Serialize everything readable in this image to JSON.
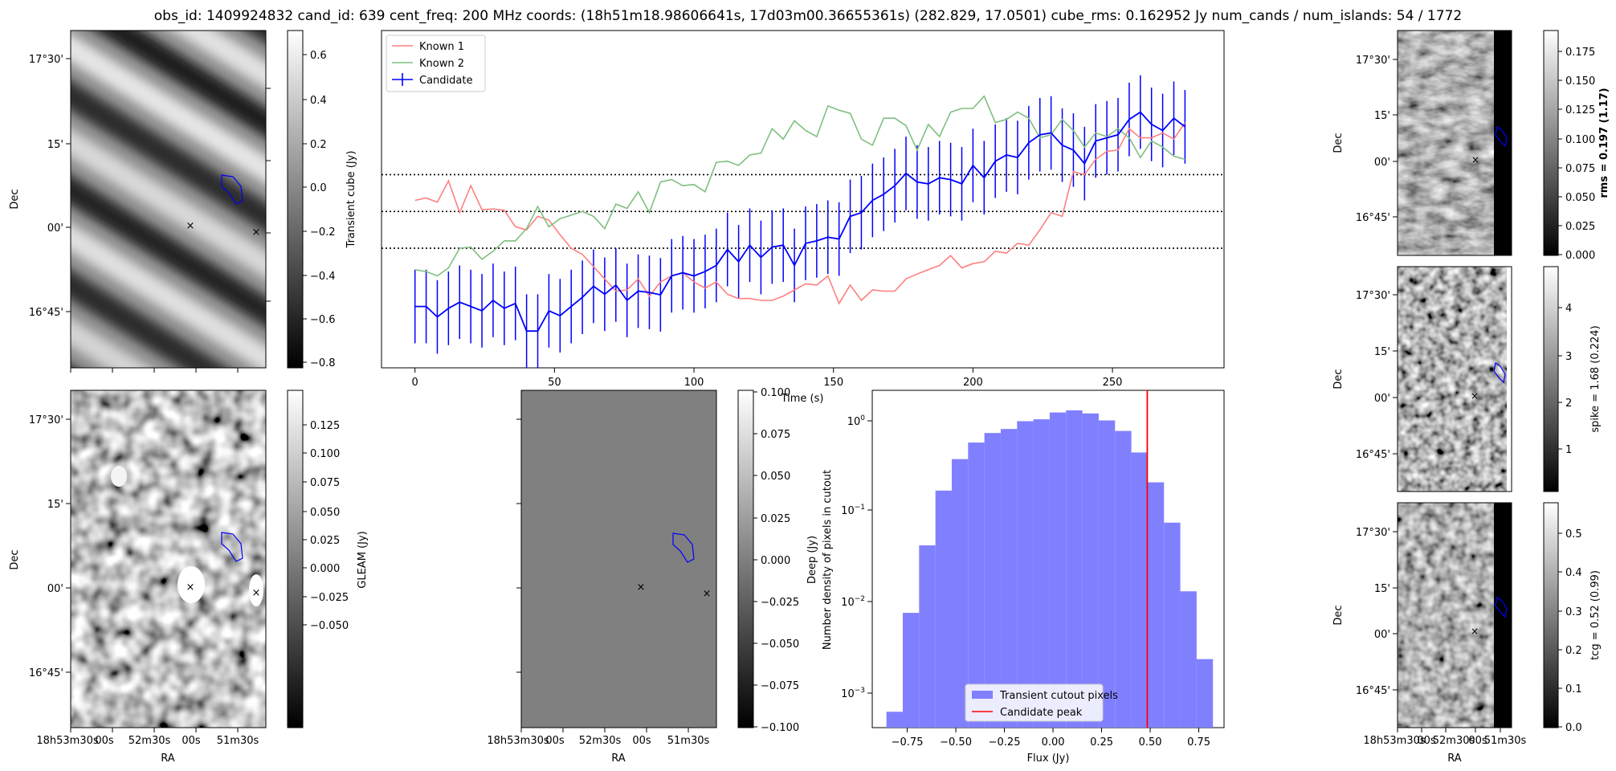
{
  "title": "obs_id: 1409924832 cand_id: 639 cent_freq: 200 MHz coords: (18h51m18.98606641s, 17d03m00.36655361s) (282.829, 17.0501) cube_rms: 0.162952 Jy num_cands / num_islands: 54 / 1772",
  "colors": {
    "known1": "#ff7f7f",
    "known2": "#7fbf7f",
    "candidate": "#0000ff",
    "hist": "#8080ff",
    "peak": "#ff0000",
    "marker_red": "#ff0000",
    "marker_green": "#008000"
  },
  "sky_axes": {
    "dec_ticks": [
      "17°30'",
      "15'",
      "00'",
      "16°45'"
    ],
    "ra_ticks": [
      "18h53m30s",
      "00s",
      "52m30s",
      "00s",
      "51m30s"
    ],
    "xlabel": "RA",
    "ylabel": "Dec"
  },
  "colorbars": {
    "transient": {
      "label": "Transient cube (Jy)",
      "ticks": [
        "0.6",
        "0.4",
        "0.2",
        "0.0",
        "−0.2",
        "−0.4",
        "−0.6",
        "−0.8"
      ]
    },
    "gleam": {
      "label": "GLEAM (Jy)",
      "ticks": [
        "0.125",
        "0.100",
        "0.075",
        "0.050",
        "0.025",
        "0.000",
        "−0.025",
        "−0.050"
      ]
    },
    "deep": {
      "label": "Deep (Jy)",
      "ticks": [
        "0.100",
        "0.075",
        "0.050",
        "0.025",
        "0.000",
        "−0.025",
        "−0.050",
        "−0.075",
        "−0.100"
      ]
    },
    "rms": {
      "label": "rms = 0.197 (1.17)",
      "ticks": [
        "0.175",
        "0.150",
        "0.125",
        "0.100",
        "0.075",
        "0.050",
        "0.025",
        "0.000"
      ]
    },
    "spike": {
      "label": "spike = 1.68 (0.224)",
      "ticks": [
        "4",
        "3",
        "2",
        "1"
      ]
    },
    "tcg": {
      "label": "tcg = 0.52 (0.99)",
      "ticks": [
        "0.5",
        "0.4",
        "0.3",
        "0.2",
        "0.1",
        "0.0"
      ]
    }
  },
  "chart_data": [
    {
      "type": "line",
      "xlabel": "Time (s)",
      "ylabel": "",
      "xlim": [
        -12,
        290
      ],
      "ylim": [
        -2.55,
        2.95
      ],
      "x_ticks": [
        0,
        50,
        100,
        150,
        200,
        250
      ],
      "hlines": [
        0.6,
        0.0,
        -0.6
      ],
      "legend": "top-left",
      "x": [
        0,
        4,
        8,
        12,
        16,
        20,
        24,
        28,
        32,
        36,
        40,
        44,
        48,
        52,
        56,
        60,
        64,
        68,
        72,
        76,
        80,
        84,
        88,
        92,
        96,
        100,
        104,
        108,
        112,
        116,
        120,
        124,
        128,
        132,
        136,
        140,
        144,
        148,
        152,
        156,
        160,
        164,
        168,
        172,
        176,
        180,
        184,
        188,
        192,
        196,
        200,
        204,
        208,
        212,
        216,
        220,
        224,
        228,
        232,
        236,
        240,
        244,
        248,
        252,
        256,
        260,
        264,
        268,
        272,
        276
      ],
      "series": [
        {
          "name": "Known 1",
          "values": [
            0.18,
            0.22,
            0.15,
            0.5,
            -0.02,
            0.42,
            0.03,
            0.04,
            0.02,
            -0.25,
            -0.3,
            -0.08,
            -0.14,
            -0.38,
            -0.6,
            -0.7,
            -0.9,
            -1.1,
            -1.3,
            -1.28,
            -1.1,
            -1.38,
            -1.15,
            -1.05,
            -1.0,
            -1.15,
            -1.25,
            -1.15,
            -1.35,
            -1.42,
            -1.42,
            -1.45,
            -1.45,
            -1.38,
            -1.28,
            -1.18,
            -1.2,
            -1.05,
            -1.5,
            -1.2,
            -1.45,
            -1.28,
            -1.3,
            -1.3,
            -1.1,
            -1.02,
            -0.95,
            -0.88,
            -0.72,
            -0.92,
            -0.85,
            -0.82,
            -0.65,
            -0.68,
            -0.52,
            -0.55,
            -0.3,
            -0.02,
            -0.08,
            0.65,
            0.6,
            0.85,
            0.98,
            1.0,
            1.35,
            1.2,
            1.2,
            1.28,
            1.18,
            1.45
          ]
        },
        {
          "name": "Known 2",
          "values": [
            -0.95,
            -0.98,
            -1.05,
            -0.92,
            -0.6,
            -0.58,
            -0.78,
            -0.65,
            -0.48,
            -0.48,
            -0.28,
            0.08,
            -0.25,
            -0.12,
            -0.06,
            0.0,
            -0.08,
            -0.28,
            0.12,
            0.05,
            0.32,
            -0.02,
            0.48,
            0.52,
            0.42,
            0.44,
            0.32,
            0.8,
            0.82,
            0.75,
            0.92,
            0.95,
            1.35,
            1.18,
            1.48,
            1.32,
            1.22,
            1.72,
            1.65,
            1.6,
            1.18,
            1.08,
            1.52,
            1.52,
            1.4,
            1.0,
            1.42,
            1.22,
            1.62,
            1.68,
            1.68,
            1.88,
            1.45,
            1.5,
            1.62,
            1.52,
            1.2,
            1.25,
            1.5,
            1.32,
            1.05,
            1.28,
            1.22,
            1.35,
            1.2,
            0.88,
            1.15,
            1.05,
            0.9,
            0.85
          ]
        },
        {
          "name": "Candidate",
          "values": [
            -1.55,
            -1.55,
            -1.72,
            -1.58,
            -1.48,
            -1.55,
            -1.62,
            -1.45,
            -1.58,
            -1.5,
            -1.95,
            -1.95,
            -1.62,
            -1.7,
            -1.55,
            -1.4,
            -1.22,
            -1.35,
            -1.2,
            -1.45,
            -1.3,
            -1.32,
            -1.36,
            -1.05,
            -1.0,
            -1.05,
            -0.98,
            -0.88,
            -0.62,
            -0.82,
            -0.55,
            -0.75,
            -0.58,
            -0.55,
            -0.88,
            -0.52,
            -0.48,
            -0.42,
            -0.45,
            -0.08,
            -0.02,
            0.18,
            0.28,
            0.42,
            0.62,
            0.48,
            0.45,
            0.55,
            0.52,
            0.45,
            0.75,
            0.55,
            0.82,
            0.92,
            0.88,
            1.12,
            1.25,
            1.28,
            1.08,
            1.0,
            0.78,
            1.15,
            1.2,
            1.25,
            1.5,
            1.62,
            1.42,
            1.32,
            1.52,
            1.38
          ]
        }
      ],
      "candidate_error": 0.6
    },
    {
      "type": "bar",
      "xlabel": "Flux (Jy)",
      "ylabel": "Number density of pixels in cutout",
      "yscale": "log",
      "ylim": [
        0.0004,
        2.2
      ],
      "xlim": [
        -0.93,
        0.88
      ],
      "x_ticks": [
        "−0.75",
        "−0.50",
        "−0.25",
        "0.00",
        "0.25",
        "0.50",
        "0.75"
      ],
      "y_ticks": [
        "10^0",
        "10^-1",
        "10^-2",
        "10^-3"
      ],
      "bin_edges": [
        -0.857,
        -0.773,
        -0.689,
        -0.605,
        -0.521,
        -0.437,
        -0.353,
        -0.269,
        -0.185,
        -0.101,
        -0.017,
        0.067,
        0.151,
        0.235,
        0.319,
        0.403,
        0.487,
        0.571,
        0.655,
        0.739,
        0.823
      ],
      "values": [
        0.0006,
        0.0075,
        0.042,
        0.17,
        0.38,
        0.58,
        0.74,
        0.82,
        1.0,
        1.05,
        1.25,
        1.32,
        1.22,
        1.02,
        0.78,
        0.45,
        0.21,
        0.075,
        0.013,
        0.0023
      ],
      "peak": 0.485,
      "legend": "bottom-center",
      "legend_labels": [
        "Transient cutout pixels",
        "Candidate peak"
      ]
    }
  ]
}
